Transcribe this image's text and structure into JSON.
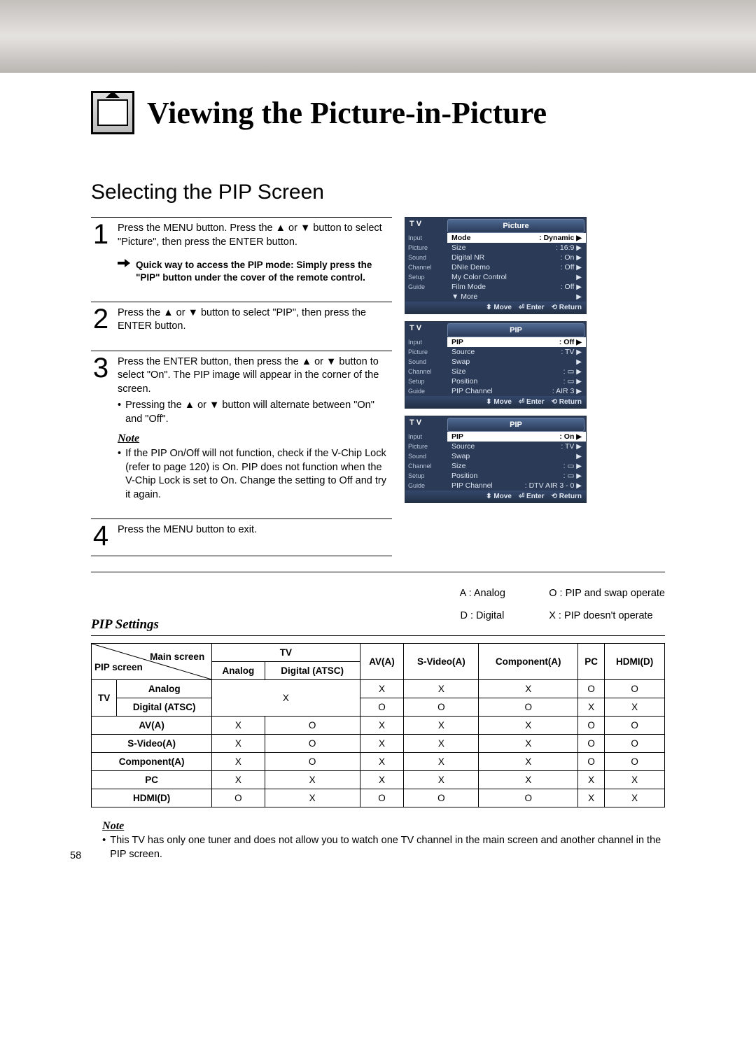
{
  "page_number": "58",
  "title": "Viewing the Picture-in-Picture",
  "subtitle": "Selecting the PIP Screen",
  "steps": [
    {
      "num": "1",
      "text": "Press the MENU button. Press the ▲ or ▼ button to select \"Picture\", then press the ENTER button.",
      "quick": "Quick way to access the PIP mode: Simply press the \"PIP\" button under the cover of the remote control."
    },
    {
      "num": "2",
      "text": "Press the ▲ or ▼ button to select \"PIP\", then press the ENTER button."
    },
    {
      "num": "3",
      "text": "Press the ENTER button, then press the ▲ or ▼ button to select \"On\". The PIP image will appear in the corner of the screen.",
      "bullet": "Pressing the ▲ or ▼ button will alternate between \"On\" and \"Off\".",
      "note_title": "Note",
      "note_bullet": "If the PIP On/Off will not function, check if the V-Chip Lock (refer to page 120) is On. PIP does not function when the V-Chip Lock is set to On. Change the setting to Off and try it again."
    },
    {
      "num": "4",
      "text": "Press the MENU button to exit."
    }
  ],
  "osd": {
    "side_items": [
      "Input",
      "Picture",
      "Sound",
      "Channel",
      "Setup",
      "Guide"
    ],
    "foot": {
      "move": "Move",
      "enter": "Enter",
      "return": "Return"
    },
    "panel1": {
      "corner": "T V",
      "title": "Picture",
      "rows": [
        {
          "l": "Mode",
          "r": ": Dynamic",
          "active": true
        },
        {
          "l": "Size",
          "r": ": 16:9"
        },
        {
          "l": "Digital NR",
          "r": ": On"
        },
        {
          "l": "DNIe Demo",
          "r": ": Off"
        },
        {
          "l": "My Color Control",
          "r": ""
        },
        {
          "l": "Film Mode",
          "r": ": Off"
        },
        {
          "l": "▼ More",
          "r": ""
        }
      ]
    },
    "panel2": {
      "corner": "T V",
      "title": "PIP",
      "rows": [
        {
          "l": "PIP",
          "r": ": Off",
          "active": true
        },
        {
          "l": "Source",
          "r": ": TV"
        },
        {
          "l": "Swap",
          "r": ""
        },
        {
          "l": "Size",
          "r": ": ▭"
        },
        {
          "l": "Position",
          "r": ": ▭"
        },
        {
          "l": "PIP Channel",
          "r": ": AIR 3"
        }
      ]
    },
    "panel3": {
      "corner": "T V",
      "title": "PIP",
      "rows": [
        {
          "l": "PIP",
          "r": ": On",
          "active": true
        },
        {
          "l": "Source",
          "r": ": TV"
        },
        {
          "l": "Swap",
          "r": ""
        },
        {
          "l": "Size",
          "r": ": ▭"
        },
        {
          "l": "Position",
          "r": ": ▭"
        },
        {
          "l": "PIP Channel",
          "r": ": DTV AIR 3 - 0"
        }
      ]
    }
  },
  "settings": {
    "title": "PIP Settings",
    "legend": {
      "a": "A : Analog",
      "d": "D : Digital",
      "o": "O : PIP and swap operate",
      "x": "X : PIP doesn't operate"
    },
    "corner_top": "Main screen",
    "corner_bottom": "PIP screen",
    "cols": [
      "Analog",
      "Digital\n(ATSC)",
      "AV(A)",
      "S-Video(A)",
      "Component(A)",
      "PC",
      "HDMI(D)"
    ],
    "tv_group": "TV",
    "rows": [
      {
        "h": "Analog",
        "v": [
          null,
          null,
          "X",
          "X",
          "X",
          "O",
          "O"
        ]
      },
      {
        "h": "Digital\n(ATSC)",
        "v": [
          null,
          null,
          "O",
          "O",
          "O",
          "X",
          "X"
        ]
      },
      {
        "h": "AV(A)",
        "v": [
          "X",
          "O",
          "X",
          "X",
          "X",
          "O",
          "O"
        ],
        "span": true
      },
      {
        "h": "S-Video(A)",
        "v": [
          "X",
          "O",
          "X",
          "X",
          "X",
          "O",
          "O"
        ],
        "span": true
      },
      {
        "h": "Component(A)",
        "v": [
          "X",
          "O",
          "X",
          "X",
          "X",
          "O",
          "O"
        ],
        "span": true
      },
      {
        "h": "PC",
        "v": [
          "X",
          "X",
          "X",
          "X",
          "X",
          "X",
          "X"
        ],
        "span": true
      },
      {
        "h": "HDMI(D)",
        "v": [
          "O",
          "X",
          "O",
          "O",
          "O",
          "X",
          "X"
        ],
        "span": true
      }
    ],
    "merged_x": "X"
  },
  "bottom_note": {
    "title": "Note",
    "text": "This TV has only one tuner and does not allow you to watch one TV channel in the main screen and another channel in the PIP screen."
  }
}
